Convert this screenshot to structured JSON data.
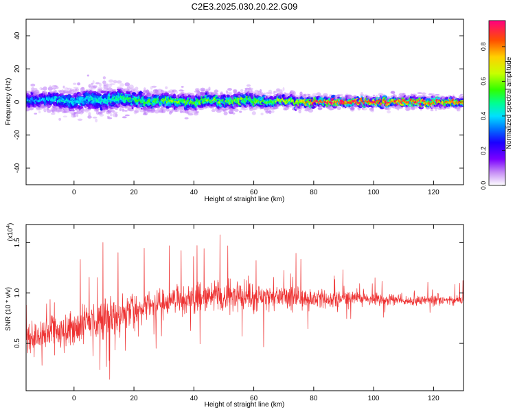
{
  "figure": {
    "title": "C2E3.2025.030.20.22.G09"
  },
  "chart_data": [
    {
      "type": "heatmap",
      "title": "",
      "xlabel": "Height of straight line (km)",
      "ylabel": "Frequency (Hz)",
      "xlim": [
        -16,
        130
      ],
      "ylim": [
        -50,
        50
      ],
      "x_ticks": [
        0,
        20,
        40,
        60,
        80,
        100,
        120
      ],
      "y_ticks": [
        -40,
        -20,
        0,
        20,
        40
      ],
      "colorbar": {
        "label": "Normalized spectral amplitude",
        "range": [
          0,
          0.95
        ],
        "ticks": [
          0.0,
          0.2,
          0.4,
          0.6,
          0.8
        ]
      },
      "ridge": {
        "x": [
          -15,
          -10,
          -5,
          0,
          5,
          10,
          15,
          20,
          25,
          30,
          35,
          40,
          45,
          50,
          55,
          60,
          65,
          70,
          75,
          80,
          85,
          90,
          95,
          100,
          105,
          110,
          115,
          120,
          125,
          129
        ],
        "center_hz": [
          1,
          2,
          1,
          0,
          2,
          1,
          3,
          1,
          0,
          1,
          0,
          0,
          1,
          0,
          1,
          1,
          0,
          1,
          0,
          0,
          0,
          0,
          0,
          0,
          0,
          0,
          0,
          0,
          0,
          0
        ],
        "spread_hz": [
          6,
          6,
          7,
          7,
          8,
          8,
          7,
          6,
          6,
          5,
          5,
          5,
          5,
          5,
          5,
          5,
          4,
          4,
          4,
          3,
          3,
          3,
          3,
          3,
          3,
          3,
          3,
          3,
          3,
          3
        ],
        "peak_amplitude": [
          0.35,
          0.35,
          0.4,
          0.4,
          0.4,
          0.4,
          0.45,
          0.5,
          0.5,
          0.55,
          0.55,
          0.55,
          0.55,
          0.55,
          0.55,
          0.55,
          0.55,
          0.6,
          0.6,
          0.85,
          0.9,
          0.9,
          0.9,
          0.85,
          0.85,
          0.85,
          0.85,
          0.8,
          0.8,
          0.75
        ]
      }
    },
    {
      "type": "line",
      "title": "",
      "xlabel": "Height of straight line (km)",
      "ylabel": "SNR (10 * v/v)",
      "y_multiplier": "(x10",
      "y_multiplier_exp": "4",
      "y_multiplier_close": ")",
      "xlim": [
        -16,
        130
      ],
      "ylim": [
        0.03,
        1.68
      ],
      "x_ticks": [
        0,
        20,
        40,
        60,
        80,
        100,
        120
      ],
      "y_ticks": [
        0.5,
        1.0,
        1.5
      ],
      "y_tick_labels": [
        "0.5",
        "1.0",
        "1.5"
      ],
      "color": "#ee3333",
      "series": [
        {
          "x": [
            -16,
            -12,
            -8,
            -4,
            0,
            4,
            8,
            12,
            16,
            20,
            25,
            30,
            35,
            40,
            45,
            50,
            55,
            60,
            65,
            70,
            75,
            80,
            85,
            90,
            95,
            100,
            105,
            110,
            115,
            120,
            125,
            130
          ],
          "mean": [
            0.5,
            0.55,
            0.6,
            0.62,
            0.65,
            0.7,
            0.72,
            0.75,
            0.8,
            0.85,
            0.88,
            0.9,
            0.92,
            0.95,
            0.96,
            0.97,
            0.97,
            0.96,
            0.97,
            0.97,
            0.95,
            0.94,
            0.94,
            0.95,
            0.95,
            0.94,
            0.93,
            0.92,
            0.92,
            0.93,
            0.93,
            0.93
          ],
          "spread": [
            0.3,
            0.3,
            0.3,
            0.32,
            0.35,
            0.35,
            0.35,
            0.35,
            0.32,
            0.3,
            0.28,
            0.28,
            0.28,
            0.28,
            0.28,
            0.28,
            0.26,
            0.25,
            0.24,
            0.22,
            0.2,
            0.18,
            0.16,
            0.14,
            0.12,
            0.11,
            0.1,
            0.09,
            0.09,
            0.09,
            0.09,
            0.09
          ]
        }
      ]
    }
  ]
}
